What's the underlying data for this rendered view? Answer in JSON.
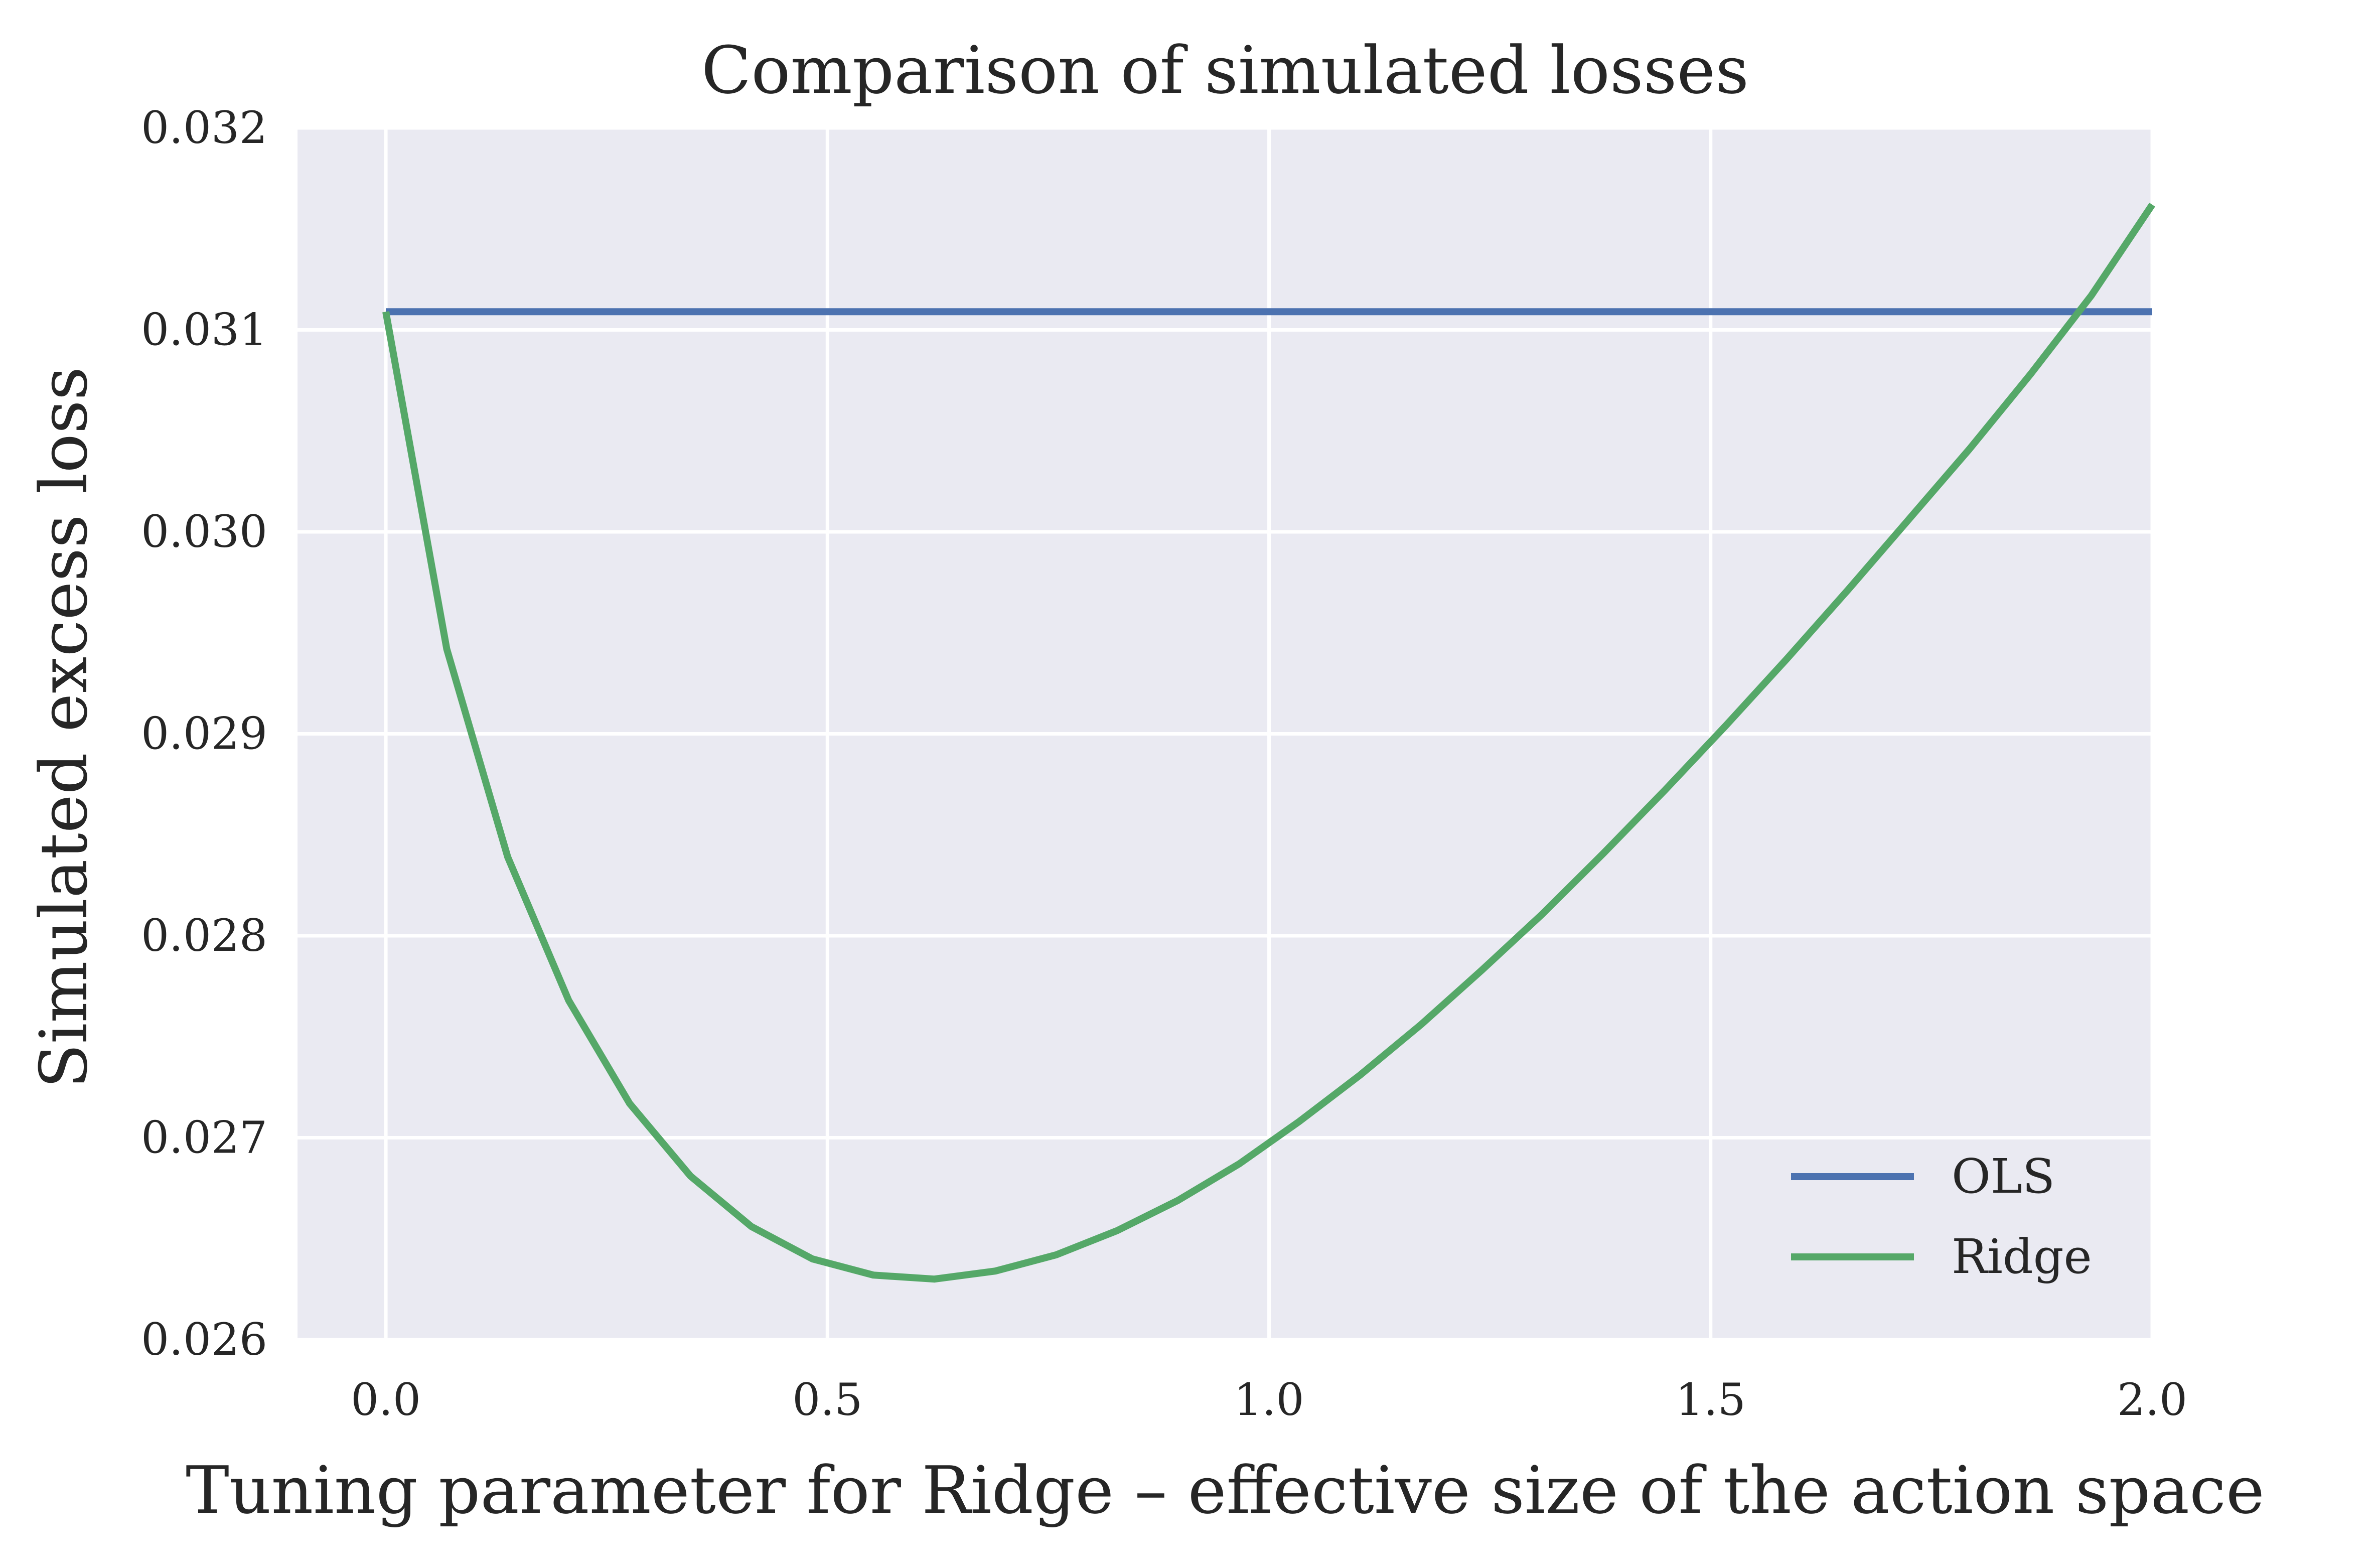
{
  "chart_data": {
    "type": "line",
    "title": "Comparison of simulated losses",
    "xlabel": "Tuning parameter for Ridge – effective size of the action space",
    "ylabel": "Simulated excess loss",
    "xlim": [
      -0.1,
      2.0
    ],
    "ylim": [
      0.026,
      0.032
    ],
    "xticks": [
      0.0,
      0.5,
      1.0,
      1.5,
      2.0
    ],
    "xtick_labels": [
      "0.0",
      "0.5",
      "1.0",
      "1.5",
      "2.0"
    ],
    "yticks": [
      0.026,
      0.027,
      0.028,
      0.029,
      0.03,
      0.031,
      0.032
    ],
    "ytick_labels": [
      "0.026",
      "0.027",
      "0.028",
      "0.029",
      "0.030",
      "0.031",
      "0.032"
    ],
    "grid": true,
    "legend_position": "bottom-right",
    "background_color": "#eaeaf2",
    "series": [
      {
        "name": "OLS",
        "color": "#4c72b0",
        "x": [
          0.0,
          2.0
        ],
        "y": [
          0.03109,
          0.03109
        ]
      },
      {
        "name": "Ridge",
        "color": "#55a868",
        "x": [
          0.0,
          0.069,
          0.138,
          0.207,
          0.276,
          0.345,
          0.414,
          0.483,
          0.552,
          0.621,
          0.69,
          0.759,
          0.828,
          0.897,
          0.966,
          1.034,
          1.103,
          1.172,
          1.241,
          1.31,
          1.379,
          1.448,
          1.517,
          1.586,
          1.655,
          1.724,
          1.793,
          1.862,
          1.931,
          2.0
        ],
        "y": [
          0.03109,
          0.02942,
          0.02839,
          0.02768,
          0.02717,
          0.02681,
          0.02656,
          0.0264,
          0.02632,
          0.0263,
          0.02634,
          0.02642,
          0.02654,
          0.02669,
          0.02687,
          0.02708,
          0.02731,
          0.02756,
          0.02783,
          0.02811,
          0.02841,
          0.02872,
          0.02904,
          0.02937,
          0.02971,
          0.03006,
          0.03041,
          0.03078,
          0.03117,
          0.03162
        ]
      }
    ]
  }
}
